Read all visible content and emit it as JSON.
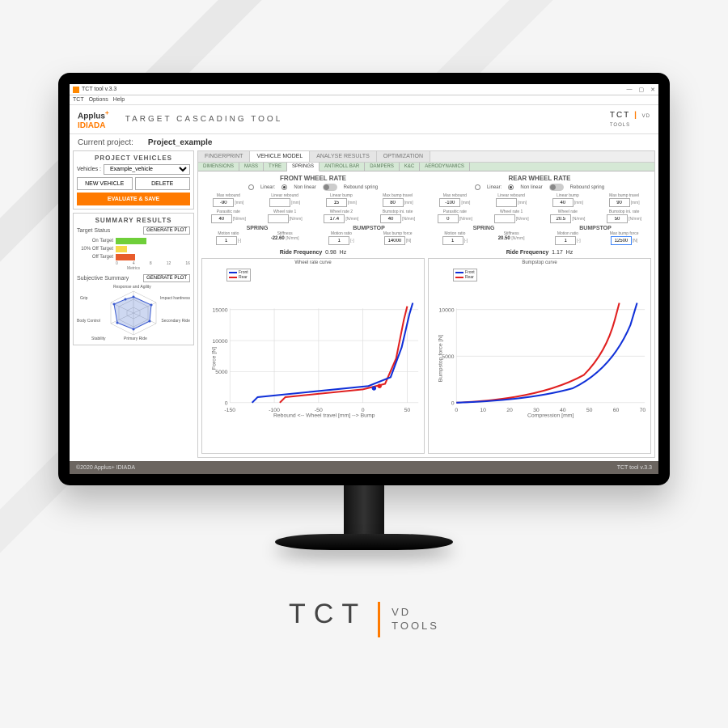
{
  "window": {
    "title": "TCT tool v.3.3",
    "menu": [
      "TCT",
      "Options",
      "Help"
    ]
  },
  "header": {
    "logo_top": "Applus",
    "logo_plus": "+",
    "logo_bottom": "IDIADA",
    "app_title": "TARGET CASCADING TOOL",
    "tct": "TCT",
    "vd": "VD",
    "tools": "TOOLS"
  },
  "project": {
    "label": "Current project:",
    "name": "Project_example"
  },
  "side_vehicles": {
    "title": "PROJECT VEHICLES",
    "sel_label": "Vehicles :",
    "sel_value": "Example_vehicle",
    "btn_new": "NEW VEHICLE",
    "btn_del": "DELETE",
    "btn_eval": "EVALUATE & SAVE"
  },
  "side_summary": {
    "title": "SUMMARY RESULTS",
    "ts_label": "Target Status",
    "gen": "GENERATE PLOT",
    "bars": [
      {
        "label": "On Target",
        "len": 38,
        "color": "#6fcf3a"
      },
      {
        "label": "10% Off Target",
        "len": 14,
        "color": "#f6d94a"
      },
      {
        "label": "Off Target",
        "len": 24,
        "color": "#e85c2b"
      }
    ],
    "axis": [
      "0",
      "4",
      "8",
      "12",
      "16"
    ],
    "axis_label": "Metrics",
    "subj_label": "Subjective Summary",
    "radar_labels": [
      "Response and Agility",
      "Impact hardness",
      "Secondary Ride",
      "Primary Ride",
      "Stability",
      "Body Control",
      "Grip"
    ]
  },
  "tabs1": [
    "FINGERPRINT",
    "VEHICLE MODEL",
    "ANALYSE RESULTS",
    "OPTIMIZATION"
  ],
  "tabs1_active": 1,
  "tabs2": [
    "DIMENSIONS",
    "MASS",
    "TYRE",
    "SPRINGS",
    "ANTIROLL BAR",
    "DAMPERS",
    "K&C",
    "AERODYNAMICS"
  ],
  "tabs2_active": 3,
  "front": {
    "title": "FRONT WHEEL RATE",
    "opt_linear": "Linear:",
    "opt_nonlinear": "Non linear",
    "opt_rebound": "Rebound spring",
    "r1": [
      {
        "l": "Max rebound",
        "v": "-90",
        "u": "[mm]"
      },
      {
        "l": "Linear rebound",
        "v": "",
        "u": "[mm]"
      },
      {
        "l": "Linear bump",
        "v": "15",
        "u": "[mm]"
      },
      {
        "l": "Max bump travel",
        "v": "80",
        "u": "[mm]"
      }
    ],
    "r2": [
      {
        "l": "Parasitic rate",
        "v": "40",
        "u": "[N/mm]"
      },
      {
        "l": "Wheel rate 1",
        "v": "",
        "u": "[N/mm]"
      },
      {
        "l": "Wheel rate 2",
        "v": "17.4",
        "u": "[N/mm]"
      },
      {
        "l": "Bumstop ini. rate",
        "v": "40",
        "u": "[N/mm]"
      }
    ],
    "spring_hdr": "SPRING",
    "bump_hdr": "BUMPSTOP",
    "sp": [
      {
        "l": "Motion ratio",
        "v": "1",
        "u": "[-]"
      },
      {
        "l": "Stiffness",
        "v": "-22.60",
        "u": "[N/mm]",
        "static": true
      },
      {
        "l": "Motion ratio",
        "v": "1",
        "u": "[-]"
      },
      {
        "l": "Max bump force",
        "v": "14000",
        "u": "[N]"
      }
    ],
    "rf_label": "Ride Frequency",
    "rf_val": "0.98",
    "rf_unit": "Hz",
    "chart_title": "Wheel rate curve",
    "xlabel": "Rebound <-- Wheel travel [mm] --> Bump",
    "ylabel": "Force [N]",
    "xticks": [
      "-150",
      "-100",
      "-50",
      "0",
      "50"
    ],
    "yticks": [
      "0",
      "5000",
      "10000",
      "15000"
    ],
    "front_color": "#1030d8",
    "rear_color": "#e02020",
    "legend": [
      "Front",
      "Rear"
    ]
  },
  "rear": {
    "title": "REAR WHEEL RATE",
    "r1": [
      {
        "l": "Max rebound",
        "v": "-100",
        "u": "[mm]"
      },
      {
        "l": "Linear rebound",
        "v": "",
        "u": "[mm]"
      },
      {
        "l": "Linear bump",
        "v": "40",
        "u": "[mm]"
      },
      {
        "l": "Max bump travel",
        "v": "90",
        "u": "[mm]"
      }
    ],
    "r2": [
      {
        "l": "Parasitic rate",
        "v": "0",
        "u": "[N/mm]"
      },
      {
        "l": "Wheel rate 1",
        "v": "",
        "u": "[N/mm]"
      },
      {
        "l": "Wheel rate",
        "v": "20.5",
        "u": "[N/mm]"
      },
      {
        "l": "Bumstop ini. rate",
        "v": "50",
        "u": "[N/mm]"
      }
    ],
    "sp": [
      {
        "l": "Motion ratio",
        "v": "1",
        "u": "[-]"
      },
      {
        "l": "Stiffness",
        "v": "20.50",
        "u": "[N/mm]",
        "static": true
      },
      {
        "l": "Motion ratio",
        "v": "1",
        "u": "[-]"
      },
      {
        "l": "Max bump force",
        "v": "12500",
        "u": "[N]",
        "hl": true
      }
    ],
    "rf_val": "1.17",
    "chart_title": "Bumpstop curve",
    "xlabel": "Compression [mm]",
    "ylabel": "Bumpstop force [N]",
    "xticks": [
      "0",
      "10",
      "20",
      "30",
      "40",
      "50",
      "60",
      "70"
    ],
    "yticks": [
      "0",
      "5000",
      "10000"
    ]
  },
  "footer": {
    "left": "©2020 Applus+ IDIADA",
    "right": "TCT tool v.3.3"
  },
  "brand": {
    "tct": "TCT",
    "vd": "VD",
    "tools": "TOOLS"
  }
}
